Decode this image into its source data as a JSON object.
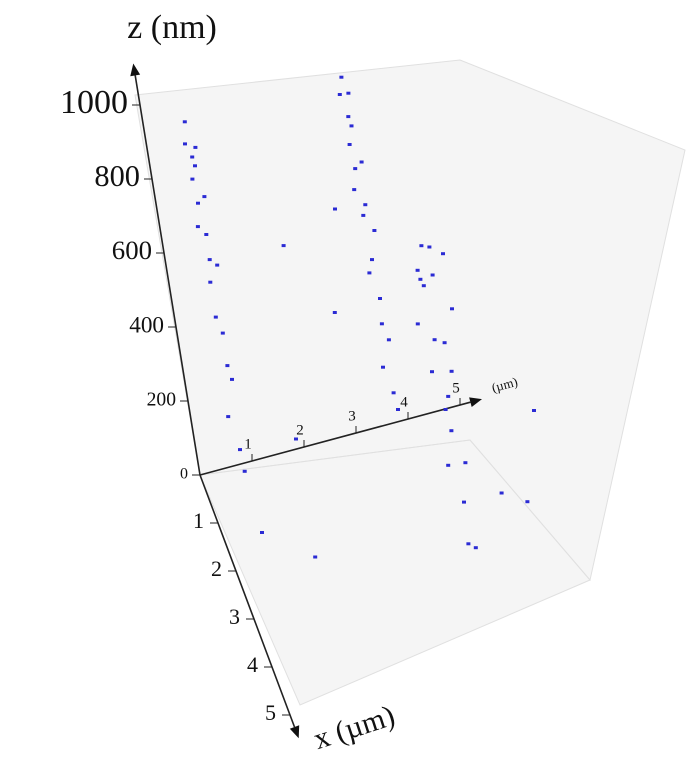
{
  "chart_data": {
    "type": "scatter3d",
    "zlabel": "z (nm)",
    "xlabel": "x (µm)",
    "ylabel": "(µm)",
    "xlim": [
      0,
      5
    ],
    "ylim": [
      0,
      5
    ],
    "zlim": [
      0,
      1000
    ],
    "xticks": [
      1,
      2,
      3,
      4,
      5
    ],
    "yticks": [
      1,
      2,
      3,
      4,
      5
    ],
    "zticks": [
      0,
      200,
      400,
      600,
      800,
      1000
    ],
    "series": [
      {
        "color": "#2b2bd4",
        "x": [
          0.4,
          0.6,
          0.5,
          0.7,
          0.3,
          0.5,
          0.6,
          0.4,
          0.55,
          0.45,
          0.65,
          0.5,
          0.35,
          0.6,
          0.5,
          0.7,
          0.4,
          0.5,
          0.6,
          0.45,
          0.5,
          0.6,
          0.4,
          0.55,
          0.45,
          0.5,
          0.6,
          0.4,
          0.5,
          0.55,
          0.45,
          0.5,
          0.6,
          0.4,
          0.5,
          0.55,
          0.45,
          0.5,
          0.6,
          0.5,
          3.0,
          3.3,
          2.7,
          3.1,
          2.9,
          3.4,
          2.6,
          3.0,
          3.2,
          2.8,
          3.1,
          2.9,
          3.3,
          2.7,
          3.0,
          3.2,
          2.8,
          3.1,
          3.4,
          3.0,
          1.2,
          2.0,
          4.5,
          1.8,
          3.6,
          4.0,
          0.9,
          2.5,
          4.8,
          1.5
        ],
        "y": [
          0.7,
          0.6,
          0.8,
          0.7,
          0.75,
          0.65,
          0.8,
          0.7,
          0.6,
          0.75,
          0.7,
          0.85,
          0.7,
          0.65,
          0.75,
          0.7,
          0.8,
          0.6,
          0.7,
          0.75,
          3.7,
          3.6,
          3.8,
          3.7,
          3.75,
          3.65,
          3.8,
          3.7,
          3.6,
          3.75,
          3.7,
          3.85,
          3.7,
          3.65,
          3.75,
          3.7,
          3.8,
          3.6,
          3.7,
          3.75,
          4.2,
          4.0,
          4.4,
          4.3,
          4.1,
          4.5,
          4.2,
          3.9,
          4.3,
          4.2,
          4.0,
          4.4,
          4.1,
          4.3,
          4.2,
          4.0,
          4.4,
          4.2,
          4.1,
          4.3,
          2.0,
          1.5,
          5.5,
          4.8,
          1.2,
          5.2,
          2.8,
          0.5,
          4.6,
          3.0
        ],
        "z": [
          980,
          950,
          920,
          900,
          870,
          840,
          800,
          760,
          720,
          680,
          640,
          600,
          540,
          480,
          420,
          360,
          280,
          200,
          120,
          40,
          1000,
          970,
          940,
          900,
          860,
          820,
          780,
          740,
          700,
          660,
          620,
          580,
          520,
          460,
          400,
          340,
          280,
          220,
          160,
          100,
          850,
          830,
          800,
          780,
          750,
          720,
          690,
          650,
          610,
          570,
          530,
          490,
          450,
          400,
          350,
          290,
          230,
          170,
          100,
          30,
          700,
          300,
          550,
          650,
          200,
          250,
          450,
          150,
          400,
          800
        ]
      }
    ],
    "grid": false
  }
}
